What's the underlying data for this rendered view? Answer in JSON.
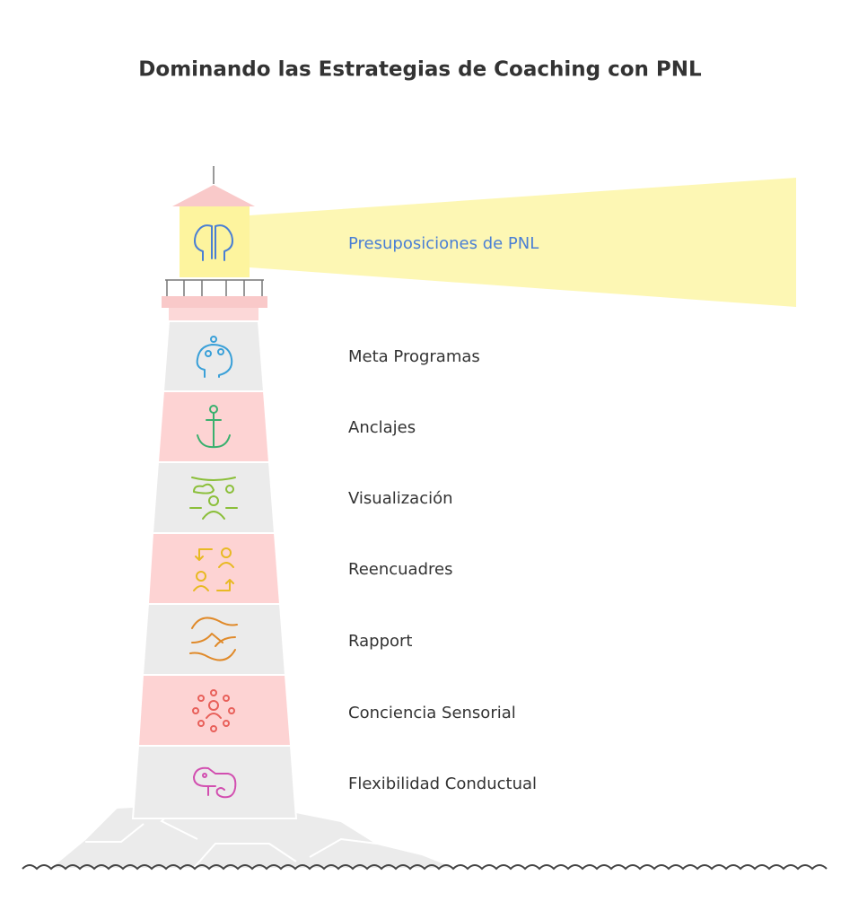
{
  "title": "Dominando las Estrategias de Coaching con PNL",
  "beam": {
    "label": "Presuposiciones de PNL"
  },
  "levels": [
    {
      "label": "Meta Programas"
    },
    {
      "label": "Anclajes"
    },
    {
      "label": "Visualización"
    },
    {
      "label": "Reencuadres"
    },
    {
      "label": "Rapport"
    },
    {
      "label": "Conciencia Sensorial"
    },
    {
      "label": "Flexibilidad Conductual"
    }
  ]
}
